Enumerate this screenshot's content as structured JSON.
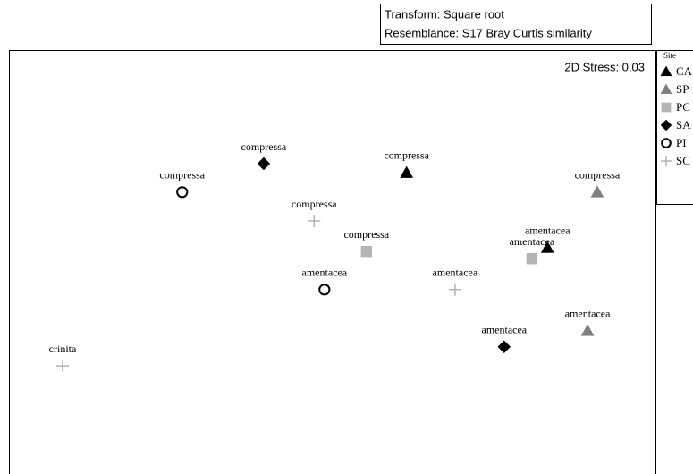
{
  "chart_data": {
    "type": "scatter",
    "info": [
      "Transform: Square root",
      "Resemblance: S17 Bray Curtis similarity"
    ],
    "stress": "2D Stress: 0,03",
    "legend_title": "Site",
    "xlim": [
      0,
      100
    ],
    "ylim": [
      0,
      100
    ],
    "series": [
      {
        "name": "CA",
        "marker": "triangle",
        "color": "#000000",
        "fill": true,
        "labels": [
          "compressa",
          "amentacea"
        ],
        "x": [
          61.5,
          83.3
        ],
        "y": [
          71.1,
          53.4
        ]
      },
      {
        "name": "SP",
        "marker": "triangle",
        "color": "#808080",
        "fill": true,
        "labels": [
          "compressa",
          "amentacea"
        ],
        "x": [
          91.0,
          89.5
        ],
        "y": [
          66.5,
          33.8
        ]
      },
      {
        "name": "PC",
        "marker": "square",
        "color": "#b4b4b4",
        "fill": true,
        "labels": [
          "compressa",
          "amentacea"
        ],
        "x": [
          55.3,
          80.9
        ],
        "y": [
          52.5,
          50.8
        ]
      },
      {
        "name": "SA",
        "marker": "diamond",
        "color": "#000000",
        "fill": true,
        "labels": [
          "compressa",
          "amentacea"
        ],
        "x": [
          39.4,
          76.6
        ],
        "y": [
          73.2,
          30.0
        ]
      },
      {
        "name": "PI",
        "marker": "circle",
        "color": "#000000",
        "fill": false,
        "labels": [
          "compressa",
          "amentacea"
        ],
        "x": [
          26.8,
          48.8
        ],
        "y": [
          66.5,
          43.5
        ]
      },
      {
        "name": "SC",
        "marker": "plus",
        "color": "#b4b4b4",
        "fill": false,
        "labels": [
          "compressa",
          "amentacea",
          "crinita"
        ],
        "x": [
          47.2,
          69.0,
          8.3
        ],
        "y": [
          59.7,
          43.5,
          25.5
        ]
      }
    ]
  }
}
